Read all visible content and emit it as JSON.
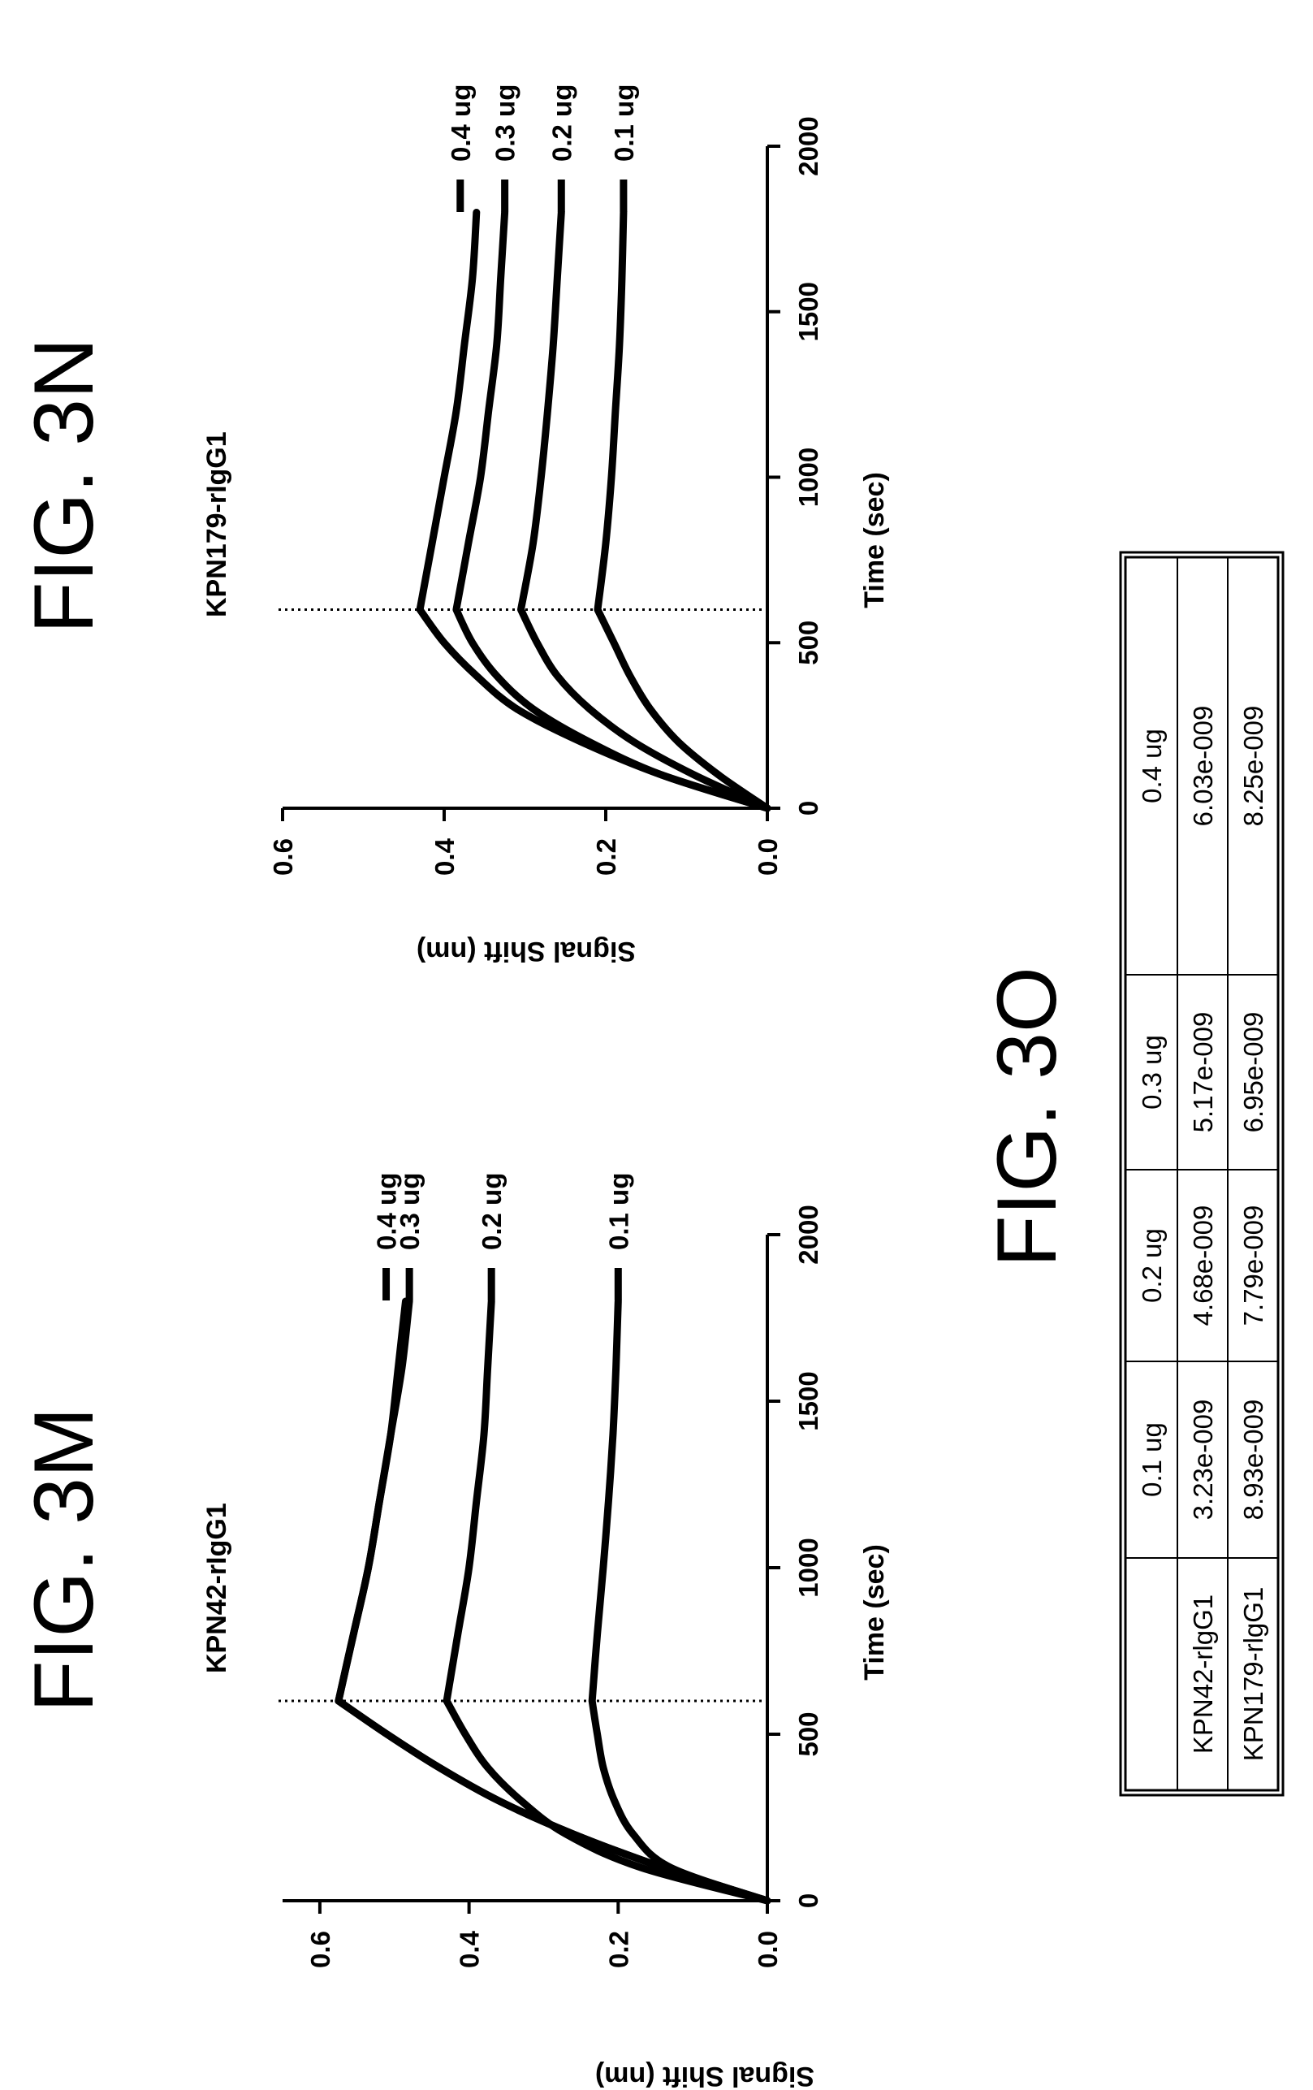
{
  "figures": {
    "m": "FIG. 3M",
    "n": "FIG. 3N",
    "o": "FIG. 3O"
  },
  "chart_data": [
    {
      "id": "m",
      "type": "line",
      "title": "KPN42-rIgG1",
      "xlabel": "Time (sec)",
      "ylabel": "Signal Shift (nm)",
      "xlim": [
        0,
        2000
      ],
      "ylim": [
        0,
        0.65
      ],
      "xticks": [
        "0",
        "500",
        "1000",
        "1500",
        "2000"
      ],
      "yticks": [
        "0.0",
        "0.2",
        "0.4",
        "0.6"
      ],
      "vertical_reference_x": 600,
      "legend_position": "right",
      "series": [
        {
          "name": "0.4 ug",
          "x": [
            0,
            100,
            200,
            300,
            400,
            500,
            600,
            800,
            1000,
            1200,
            1400,
            1600,
            1800
          ],
          "y": [
            0,
            0.14,
            0.26,
            0.36,
            0.44,
            0.51,
            0.575,
            0.555,
            0.535,
            0.52,
            0.505,
            0.495,
            0.485
          ]
        },
        {
          "name": "0.3 ug",
          "x": [
            0,
            100,
            200,
            300,
            400,
            500,
            600,
            800,
            1000,
            1200,
            1400,
            1600,
            1800
          ],
          "y": [
            0,
            0.14,
            0.26,
            0.36,
            0.44,
            0.51,
            0.575,
            0.555,
            0.535,
            0.52,
            0.505,
            0.49,
            0.48
          ]
        },
        {
          "name": "0.2 ug",
          "x": [
            0,
            100,
            200,
            300,
            400,
            500,
            600,
            800,
            1000,
            1200,
            1400,
            1600,
            1800
          ],
          "y": [
            0,
            0.17,
            0.27,
            0.33,
            0.375,
            0.405,
            0.43,
            0.415,
            0.4,
            0.39,
            0.38,
            0.375,
            0.37
          ]
        },
        {
          "name": "0.1 ug",
          "x": [
            0,
            100,
            200,
            300,
            400,
            500,
            600,
            800,
            1000,
            1200,
            1400,
            1600,
            1800
          ],
          "y": [
            0,
            0.13,
            0.18,
            0.205,
            0.22,
            0.228,
            0.235,
            0.228,
            0.22,
            0.213,
            0.207,
            0.203,
            0.2
          ]
        }
      ]
    },
    {
      "id": "n",
      "type": "line",
      "title": "KPN179-rIgG1",
      "xlabel": "Time (sec)",
      "ylabel": "Signal Shift (nm)",
      "xlim": [
        0,
        2000
      ],
      "ylim": [
        0,
        0.6
      ],
      "xticks": [
        "0",
        "500",
        "1000",
        "1500",
        "2000"
      ],
      "yticks": [
        "0.0",
        "0.2",
        "0.4",
        "0.6"
      ],
      "vertical_reference_x": 600,
      "legend_position": "right",
      "series": [
        {
          "name": "0.4 ug",
          "x": [
            0,
            100,
            200,
            300,
            400,
            500,
            600,
            800,
            1000,
            1200,
            1400,
            1600,
            1800
          ],
          "y": [
            0,
            0.13,
            0.23,
            0.31,
            0.36,
            0.4,
            0.43,
            0.415,
            0.4,
            0.385,
            0.375,
            0.365,
            0.36
          ]
        },
        {
          "name": "0.3 ug",
          "x": [
            0,
            100,
            200,
            300,
            400,
            500,
            600,
            800,
            1000,
            1200,
            1400,
            1600,
            1800
          ],
          "y": [
            0,
            0.13,
            0.22,
            0.29,
            0.335,
            0.365,
            0.385,
            0.37,
            0.355,
            0.345,
            0.335,
            0.33,
            0.325
          ]
        },
        {
          "name": "0.2 ug",
          "x": [
            0,
            100,
            200,
            300,
            400,
            500,
            600,
            800,
            1000,
            1200,
            1400,
            1600,
            1800
          ],
          "y": [
            0,
            0.09,
            0.165,
            0.22,
            0.26,
            0.285,
            0.305,
            0.29,
            0.28,
            0.272,
            0.265,
            0.26,
            0.255
          ]
        },
        {
          "name": "0.1 ug",
          "x": [
            0,
            100,
            200,
            300,
            400,
            500,
            600,
            800,
            1000,
            1200,
            1400,
            1600,
            1800
          ],
          "y": [
            0,
            0.06,
            0.11,
            0.145,
            0.17,
            0.19,
            0.21,
            0.2,
            0.193,
            0.188,
            0.183,
            0.18,
            0.178
          ]
        }
      ]
    }
  ],
  "table": {
    "headers": [
      "",
      "0.1 ug",
      "0.2 ug",
      "0.3 ug",
      "0.4 ug"
    ],
    "rows": [
      [
        "KPN42-rlgG1",
        "3.23e-009",
        "4.68e-009",
        "5.17e-009",
        "6.03e-009"
      ],
      [
        "KPN179-rlgG1",
        "8.93e-009",
        "7.79e-009",
        "6.95e-009",
        "8.25e-009"
      ]
    ]
  }
}
